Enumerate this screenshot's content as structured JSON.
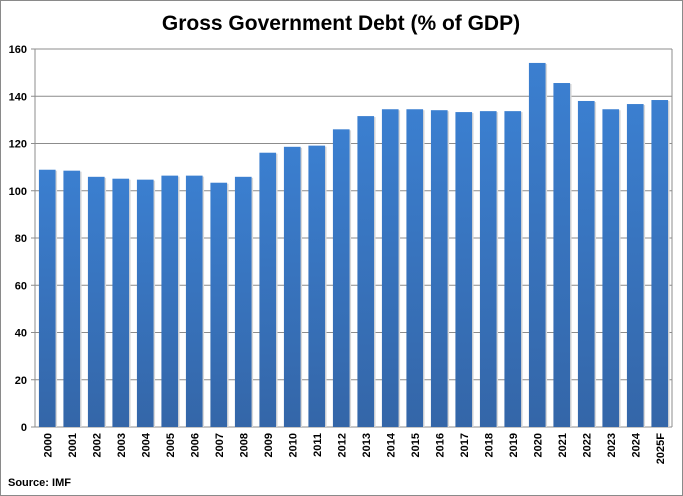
{
  "chart_data": {
    "type": "bar",
    "title": "Gross Government Debt (% of GDP)",
    "xlabel": "",
    "ylabel": "",
    "source": "Source: IMF",
    "categories": [
      "2000",
      "2001",
      "2002",
      "2003",
      "2004",
      "2005",
      "2006",
      "2007",
      "2008",
      "2009",
      "2010",
      "2011",
      "2012",
      "2013",
      "2014",
      "2015",
      "2016",
      "2017",
      "2018",
      "2019",
      "2020",
      "2021",
      "2022",
      "2023",
      "2024",
      "2025F"
    ],
    "values": [
      108.9,
      108.5,
      105.9,
      105.1,
      104.7,
      106.4,
      106.4,
      103.4,
      105.9,
      116.1,
      118.6,
      119.1,
      126.0,
      131.6,
      134.5,
      134.5,
      134.1,
      133.3,
      133.7,
      133.7,
      154.1,
      145.6,
      138.0,
      134.5,
      136.7,
      138.4
    ],
    "ylim": [
      0,
      160
    ],
    "yticks": [
      0,
      20,
      40,
      60,
      80,
      100,
      120,
      140,
      160
    ],
    "grid": true,
    "legend": "none",
    "colors": {
      "bar_top": "#3b7fd0",
      "bar_bottom": "#3466a8",
      "grid": "#8c8c8c"
    }
  }
}
